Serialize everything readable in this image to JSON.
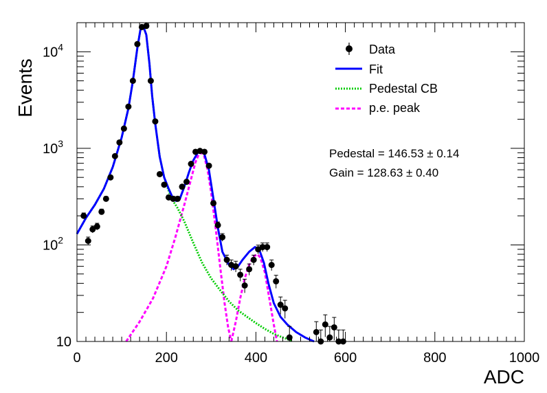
{
  "chart_data": {
    "type": "scatter",
    "xlabel": "ADC",
    "ylabel": "Events",
    "xlim": [
      0,
      1000
    ],
    "ylim": [
      10,
      20000
    ],
    "yscale": "log",
    "x_ticks": [
      0,
      200,
      400,
      600,
      800,
      1000
    ],
    "y_ticks": [
      {
        "value": 10,
        "label": "10",
        "sup": ""
      },
      {
        "value": 100,
        "label": "10",
        "sup": "2"
      },
      {
        "value": 1000,
        "label": "10",
        "sup": "3"
      },
      {
        "value": 10000,
        "label": "10",
        "sup": "4"
      }
    ],
    "legend_position": "top-right",
    "legend": [
      {
        "label": "Data",
        "style": "marker",
        "color": "#000000"
      },
      {
        "label": "Fit",
        "style": "solid",
        "color": "#0000ff"
      },
      {
        "label": "Pedestal CB",
        "style": "dotted",
        "color": "#00cc00"
      },
      {
        "label": "p.e. peak",
        "style": "dashed",
        "color": "#ff00ff"
      }
    ],
    "annotations": [
      {
        "label": "Pedestal = 146.53",
        "pm": "±",
        "err": "0.14"
      },
      {
        "label": "Gain = 128.63",
        "pm": "±",
        "err": "0.40"
      }
    ],
    "data_points": [
      {
        "x": 15,
        "y": 200
      },
      {
        "x": 25,
        "y": 110
      },
      {
        "x": 35,
        "y": 145
      },
      {
        "x": 45,
        "y": 155
      },
      {
        "x": 55,
        "y": 220
      },
      {
        "x": 65,
        "y": 300
      },
      {
        "x": 75,
        "y": 500
      },
      {
        "x": 85,
        "y": 830
      },
      {
        "x": 95,
        "y": 1150
      },
      {
        "x": 105,
        "y": 1600
      },
      {
        "x": 115,
        "y": 2700
      },
      {
        "x": 125,
        "y": 5000
      },
      {
        "x": 135,
        "y": 12000
      },
      {
        "x": 145,
        "y": 18000
      },
      {
        "x": 155,
        "y": 18500
      },
      {
        "x": 165,
        "y": 5000
      },
      {
        "x": 175,
        "y": 1900
      },
      {
        "x": 185,
        "y": 540
      },
      {
        "x": 195,
        "y": 420
      },
      {
        "x": 205,
        "y": 310
      },
      {
        "x": 215,
        "y": 300
      },
      {
        "x": 225,
        "y": 300
      },
      {
        "x": 235,
        "y": 400
      },
      {
        "x": 245,
        "y": 450
      },
      {
        "x": 255,
        "y": 690
      },
      {
        "x": 265,
        "y": 920
      },
      {
        "x": 275,
        "y": 940
      },
      {
        "x": 285,
        "y": 920
      },
      {
        "x": 295,
        "y": 660
      },
      {
        "x": 305,
        "y": 270
      },
      {
        "x": 315,
        "y": 160
      },
      {
        "x": 325,
        "y": 120
      },
      {
        "x": 335,
        "y": 70
      },
      {
        "x": 345,
        "y": 62
      },
      {
        "x": 355,
        "y": 60
      },
      {
        "x": 365,
        "y": 49
      },
      {
        "x": 375,
        "y": 38
      },
      {
        "x": 385,
        "y": 56
      },
      {
        "x": 395,
        "y": 70
      },
      {
        "x": 405,
        "y": 90
      },
      {
        "x": 415,
        "y": 95
      },
      {
        "x": 425,
        "y": 95
      },
      {
        "x": 435,
        "y": 62
      },
      {
        "x": 445,
        "y": 42
      },
      {
        "x": 455,
        "y": 24
      },
      {
        "x": 465,
        "y": 22
      },
      {
        "x": 475,
        "y": 11
      },
      {
        "x": 535,
        "y": 12.5
      },
      {
        "x": 545,
        "y": 10
      },
      {
        "x": 555,
        "y": 15
      },
      {
        "x": 565,
        "y": 11
      },
      {
        "x": 575,
        "y": 14
      },
      {
        "x": 585,
        "y": 10
      },
      {
        "x": 595,
        "y": 10
      }
    ],
    "fit_curve": [
      {
        "x": 0,
        "y": 130
      },
      {
        "x": 20,
        "y": 190
      },
      {
        "x": 40,
        "y": 260
      },
      {
        "x": 60,
        "y": 380
      },
      {
        "x": 80,
        "y": 640
      },
      {
        "x": 100,
        "y": 1300
      },
      {
        "x": 115,
        "y": 2600
      },
      {
        "x": 125,
        "y": 5000
      },
      {
        "x": 135,
        "y": 11000
      },
      {
        "x": 142,
        "y": 17000
      },
      {
        "x": 148,
        "y": 18500
      },
      {
        "x": 155,
        "y": 15000
      },
      {
        "x": 162,
        "y": 7500
      },
      {
        "x": 168,
        "y": 3500
      },
      {
        "x": 175,
        "y": 1800
      },
      {
        "x": 185,
        "y": 820
      },
      {
        "x": 195,
        "y": 500
      },
      {
        "x": 205,
        "y": 380
      },
      {
        "x": 215,
        "y": 300
      },
      {
        "x": 222,
        "y": 285
      },
      {
        "x": 230,
        "y": 300
      },
      {
        "x": 240,
        "y": 400
      },
      {
        "x": 250,
        "y": 560
      },
      {
        "x": 260,
        "y": 750
      },
      {
        "x": 270,
        "y": 900
      },
      {
        "x": 278,
        "y": 940
      },
      {
        "x": 285,
        "y": 870
      },
      {
        "x": 295,
        "y": 600
      },
      {
        "x": 305,
        "y": 300
      },
      {
        "x": 315,
        "y": 150
      },
      {
        "x": 325,
        "y": 85
      },
      {
        "x": 340,
        "y": 62
      },
      {
        "x": 350,
        "y": 56
      },
      {
        "x": 360,
        "y": 60
      },
      {
        "x": 370,
        "y": 70
      },
      {
        "x": 385,
        "y": 85
      },
      {
        "x": 398,
        "y": 95
      },
      {
        "x": 408,
        "y": 88
      },
      {
        "x": 418,
        "y": 65
      },
      {
        "x": 428,
        "y": 40
      },
      {
        "x": 440,
        "y": 25
      },
      {
        "x": 455,
        "y": 18
      },
      {
        "x": 470,
        "y": 15
      },
      {
        "x": 490,
        "y": 12.5
      },
      {
        "x": 510,
        "y": 11
      },
      {
        "x": 530,
        "y": 10
      }
    ],
    "pedestal_curve": [
      {
        "x": 0,
        "y": 130
      },
      {
        "x": 20,
        "y": 190
      },
      {
        "x": 40,
        "y": 260
      },
      {
        "x": 60,
        "y": 380
      },
      {
        "x": 80,
        "y": 640
      },
      {
        "x": 100,
        "y": 1300
      },
      {
        "x": 115,
        "y": 2600
      },
      {
        "x": 125,
        "y": 5000
      },
      {
        "x": 135,
        "y": 11000
      },
      {
        "x": 142,
        "y": 17000
      },
      {
        "x": 148,
        "y": 18500
      },
      {
        "x": 155,
        "y": 15000
      },
      {
        "x": 162,
        "y": 7500
      },
      {
        "x": 168,
        "y": 3500
      },
      {
        "x": 175,
        "y": 1800
      },
      {
        "x": 185,
        "y": 820
      },
      {
        "x": 195,
        "y": 500
      },
      {
        "x": 210,
        "y": 310
      },
      {
        "x": 225,
        "y": 240
      },
      {
        "x": 240,
        "y": 175
      },
      {
        "x": 260,
        "y": 105
      },
      {
        "x": 280,
        "y": 65
      },
      {
        "x": 300,
        "y": 45
      },
      {
        "x": 320,
        "y": 34
      },
      {
        "x": 340,
        "y": 26
      },
      {
        "x": 360,
        "y": 21
      },
      {
        "x": 380,
        "y": 18
      },
      {
        "x": 400,
        "y": 15.5
      },
      {
        "x": 420,
        "y": 13.5
      },
      {
        "x": 440,
        "y": 12
      },
      {
        "x": 460,
        "y": 11
      },
      {
        "x": 480,
        "y": 10.2
      }
    ],
    "pe_peak_curves": [
      [
        {
          "x": 110,
          "y": 10
        },
        {
          "x": 140,
          "y": 16
        },
        {
          "x": 170,
          "y": 28
        },
        {
          "x": 200,
          "y": 60
        },
        {
          "x": 220,
          "y": 120
        },
        {
          "x": 240,
          "y": 260
        },
        {
          "x": 255,
          "y": 480
        },
        {
          "x": 265,
          "y": 720
        },
        {
          "x": 272,
          "y": 860
        },
        {
          "x": 278,
          "y": 900
        },
        {
          "x": 284,
          "y": 840
        },
        {
          "x": 292,
          "y": 600
        },
        {
          "x": 300,
          "y": 350
        },
        {
          "x": 310,
          "y": 150
        },
        {
          "x": 320,
          "y": 60
        },
        {
          "x": 330,
          "y": 25
        },
        {
          "x": 338,
          "y": 14
        },
        {
          "x": 345,
          "y": 10
        }
      ],
      [
        {
          "x": 345,
          "y": 10
        },
        {
          "x": 355,
          "y": 16
        },
        {
          "x": 365,
          "y": 28
        },
        {
          "x": 375,
          "y": 45
        },
        {
          "x": 385,
          "y": 62
        },
        {
          "x": 395,
          "y": 76
        },
        {
          "x": 403,
          "y": 80
        },
        {
          "x": 410,
          "y": 74
        },
        {
          "x": 420,
          "y": 52
        },
        {
          "x": 430,
          "y": 28
        },
        {
          "x": 440,
          "y": 15
        },
        {
          "x": 447,
          "y": 10
        }
      ]
    ]
  }
}
